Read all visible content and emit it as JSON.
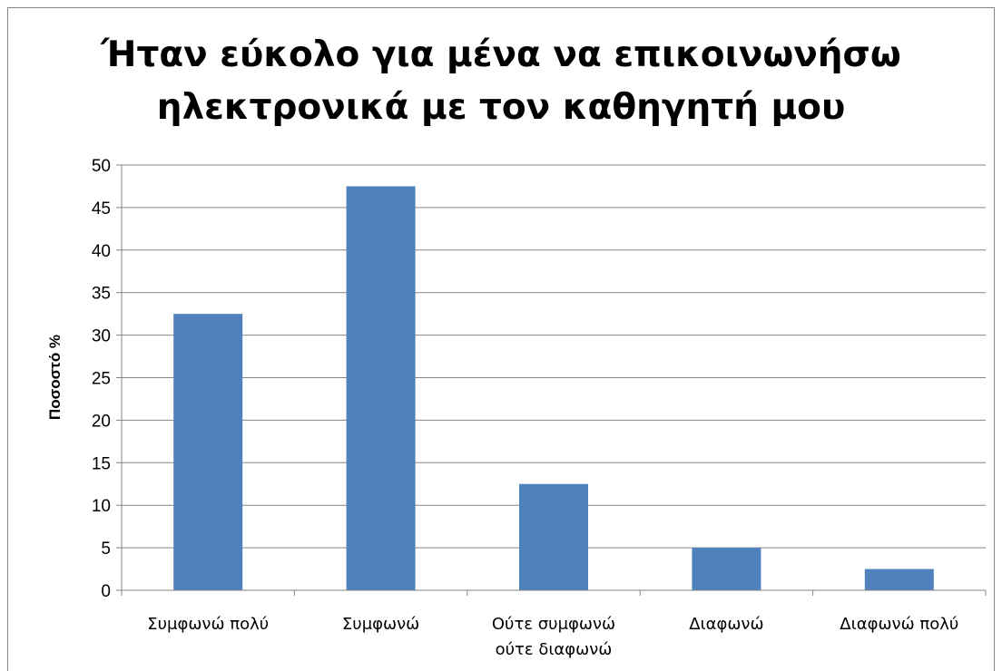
{
  "chart_data": {
    "type": "bar",
    "title": "Ήταν εύκολο για μένα να επικοινωνήσω ηλεκτρονικά με τον καθηγητή μου",
    "title_lines": [
      "Ήταν εύκολο για μένα να επικοινωνήσω",
      "ηλεκτρονικά με τον καθηγητή μου"
    ],
    "ylabel": "Ποσοστό %",
    "xlabel": "",
    "categories": [
      "Συμφωνώ πολύ",
      "Συμφωνώ",
      "Ούτε συμφωνώ ούτε διαφωνώ",
      "Διαφωνώ",
      "Διαφωνώ πολύ"
    ],
    "category_lines": [
      [
        "Συμφωνώ πολύ"
      ],
      [
        "Συμφωνώ"
      ],
      [
        "Ούτε συμφωνώ",
        "ούτε διαφωνώ"
      ],
      [
        "Διαφωνώ"
      ],
      [
        "Διαφωνώ πολύ"
      ]
    ],
    "values": [
      32.5,
      47.5,
      12.5,
      5,
      2.5
    ],
    "ylim": [
      0,
      50
    ],
    "yticks": [
      0,
      5,
      10,
      15,
      20,
      25,
      30,
      35,
      40,
      45,
      50
    ],
    "grid": true,
    "legend": "none",
    "bar_color": "#4f81bd",
    "grid_color": "#868686"
  }
}
